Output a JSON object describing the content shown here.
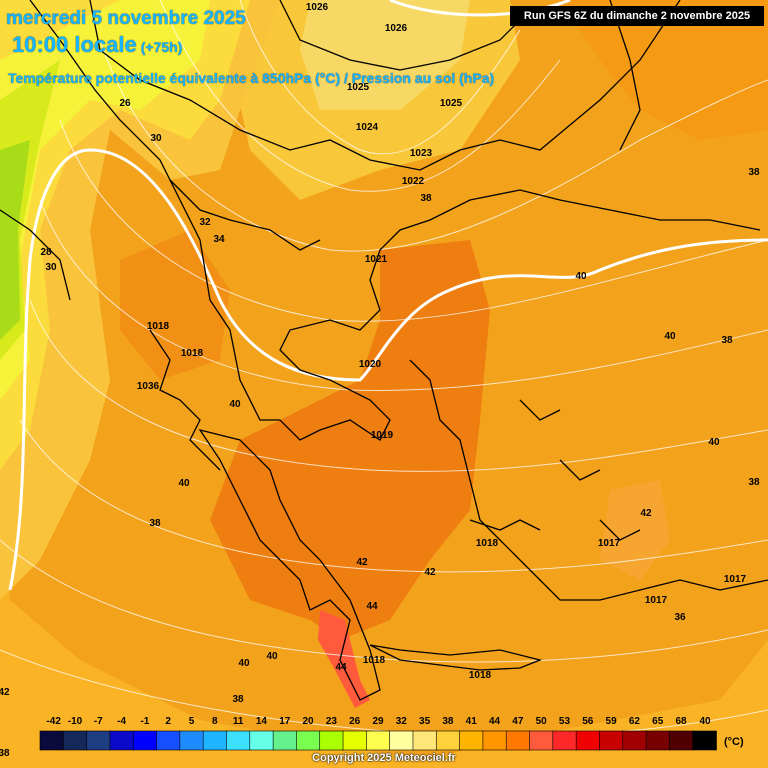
{
  "header": {
    "date": "mercredi 5 novembre 2025",
    "time": "10:00 locale",
    "lead": "(+75h)",
    "parameter": "Température potentielle équivalente à 850hPa (°C) / Pression au sol (hPa)",
    "run": "Run GFS 6Z du dimanche 2 novembre 2025"
  },
  "legend": {
    "unit": "(°C)",
    "ticks": [
      "-42",
      "-10",
      "-7",
      "-4",
      "-1",
      "2",
      "5",
      "8",
      "11",
      "14",
      "17",
      "20",
      "23",
      "26",
      "29",
      "32",
      "35",
      "38",
      "41",
      "44",
      "47",
      "50",
      "53",
      "56",
      "59",
      "62",
      "65",
      "68"
    ],
    "colors": [
      "#0a0a3c",
      "#14285a",
      "#1e3c82",
      "#0a0ac8",
      "#0000ff",
      "#1450ff",
      "#1e8cff",
      "#1eb4ff",
      "#3ce1ff",
      "#64ffe6",
      "#64f08c",
      "#78ff50",
      "#aaff00",
      "#e6ff00",
      "#ffff50",
      "#ffffa0",
      "#ffe678",
      "#ffd23c",
      "#ffb400",
      "#ff9600",
      "#ff7800",
      "#ff5a3c",
      "#ff2828",
      "#f00000",
      "#c80000",
      "#a00000",
      "#780000",
      "#500000",
      "#000000"
    ]
  },
  "pressure_labels": [
    {
      "text": "1026"
    },
    {
      "text": "1026"
    },
    {
      "text": "1025"
    },
    {
      "text": "1025"
    },
    {
      "text": "1024"
    },
    {
      "text": "1023"
    },
    {
      "text": "1022"
    },
    {
      "text": "1021"
    },
    {
      "text": "1020"
    },
    {
      "text": "1019"
    },
    {
      "text": "1018"
    },
    {
      "text": "1018"
    },
    {
      "text": "1036"
    },
    {
      "text": "1018"
    },
    {
      "text": "1018"
    },
    {
      "text": "1018"
    },
    {
      "text": "1017"
    },
    {
      "text": "1017"
    },
    {
      "text": "1017"
    }
  ],
  "temperature_labels": [
    {
      "text": "26"
    },
    {
      "text": "30"
    },
    {
      "text": "28"
    },
    {
      "text": "30"
    },
    {
      "text": "32"
    },
    {
      "text": "34"
    },
    {
      "text": "38"
    },
    {
      "text": "38"
    },
    {
      "text": "40"
    },
    {
      "text": "40"
    },
    {
      "text": "38"
    },
    {
      "text": "40"
    },
    {
      "text": "40"
    },
    {
      "text": "38"
    },
    {
      "text": "40"
    },
    {
      "text": "38"
    },
    {
      "text": "42"
    },
    {
      "text": "42"
    },
    {
      "text": "42"
    },
    {
      "text": "44"
    },
    {
      "text": "40"
    },
    {
      "text": "40"
    },
    {
      "text": "38"
    },
    {
      "text": "36"
    },
    {
      "text": "42"
    },
    {
      "text": "38"
    },
    {
      "text": "40"
    },
    {
      "text": "44"
    }
  ],
  "copyright": "Copyright 2025 Meteociel.fr"
}
